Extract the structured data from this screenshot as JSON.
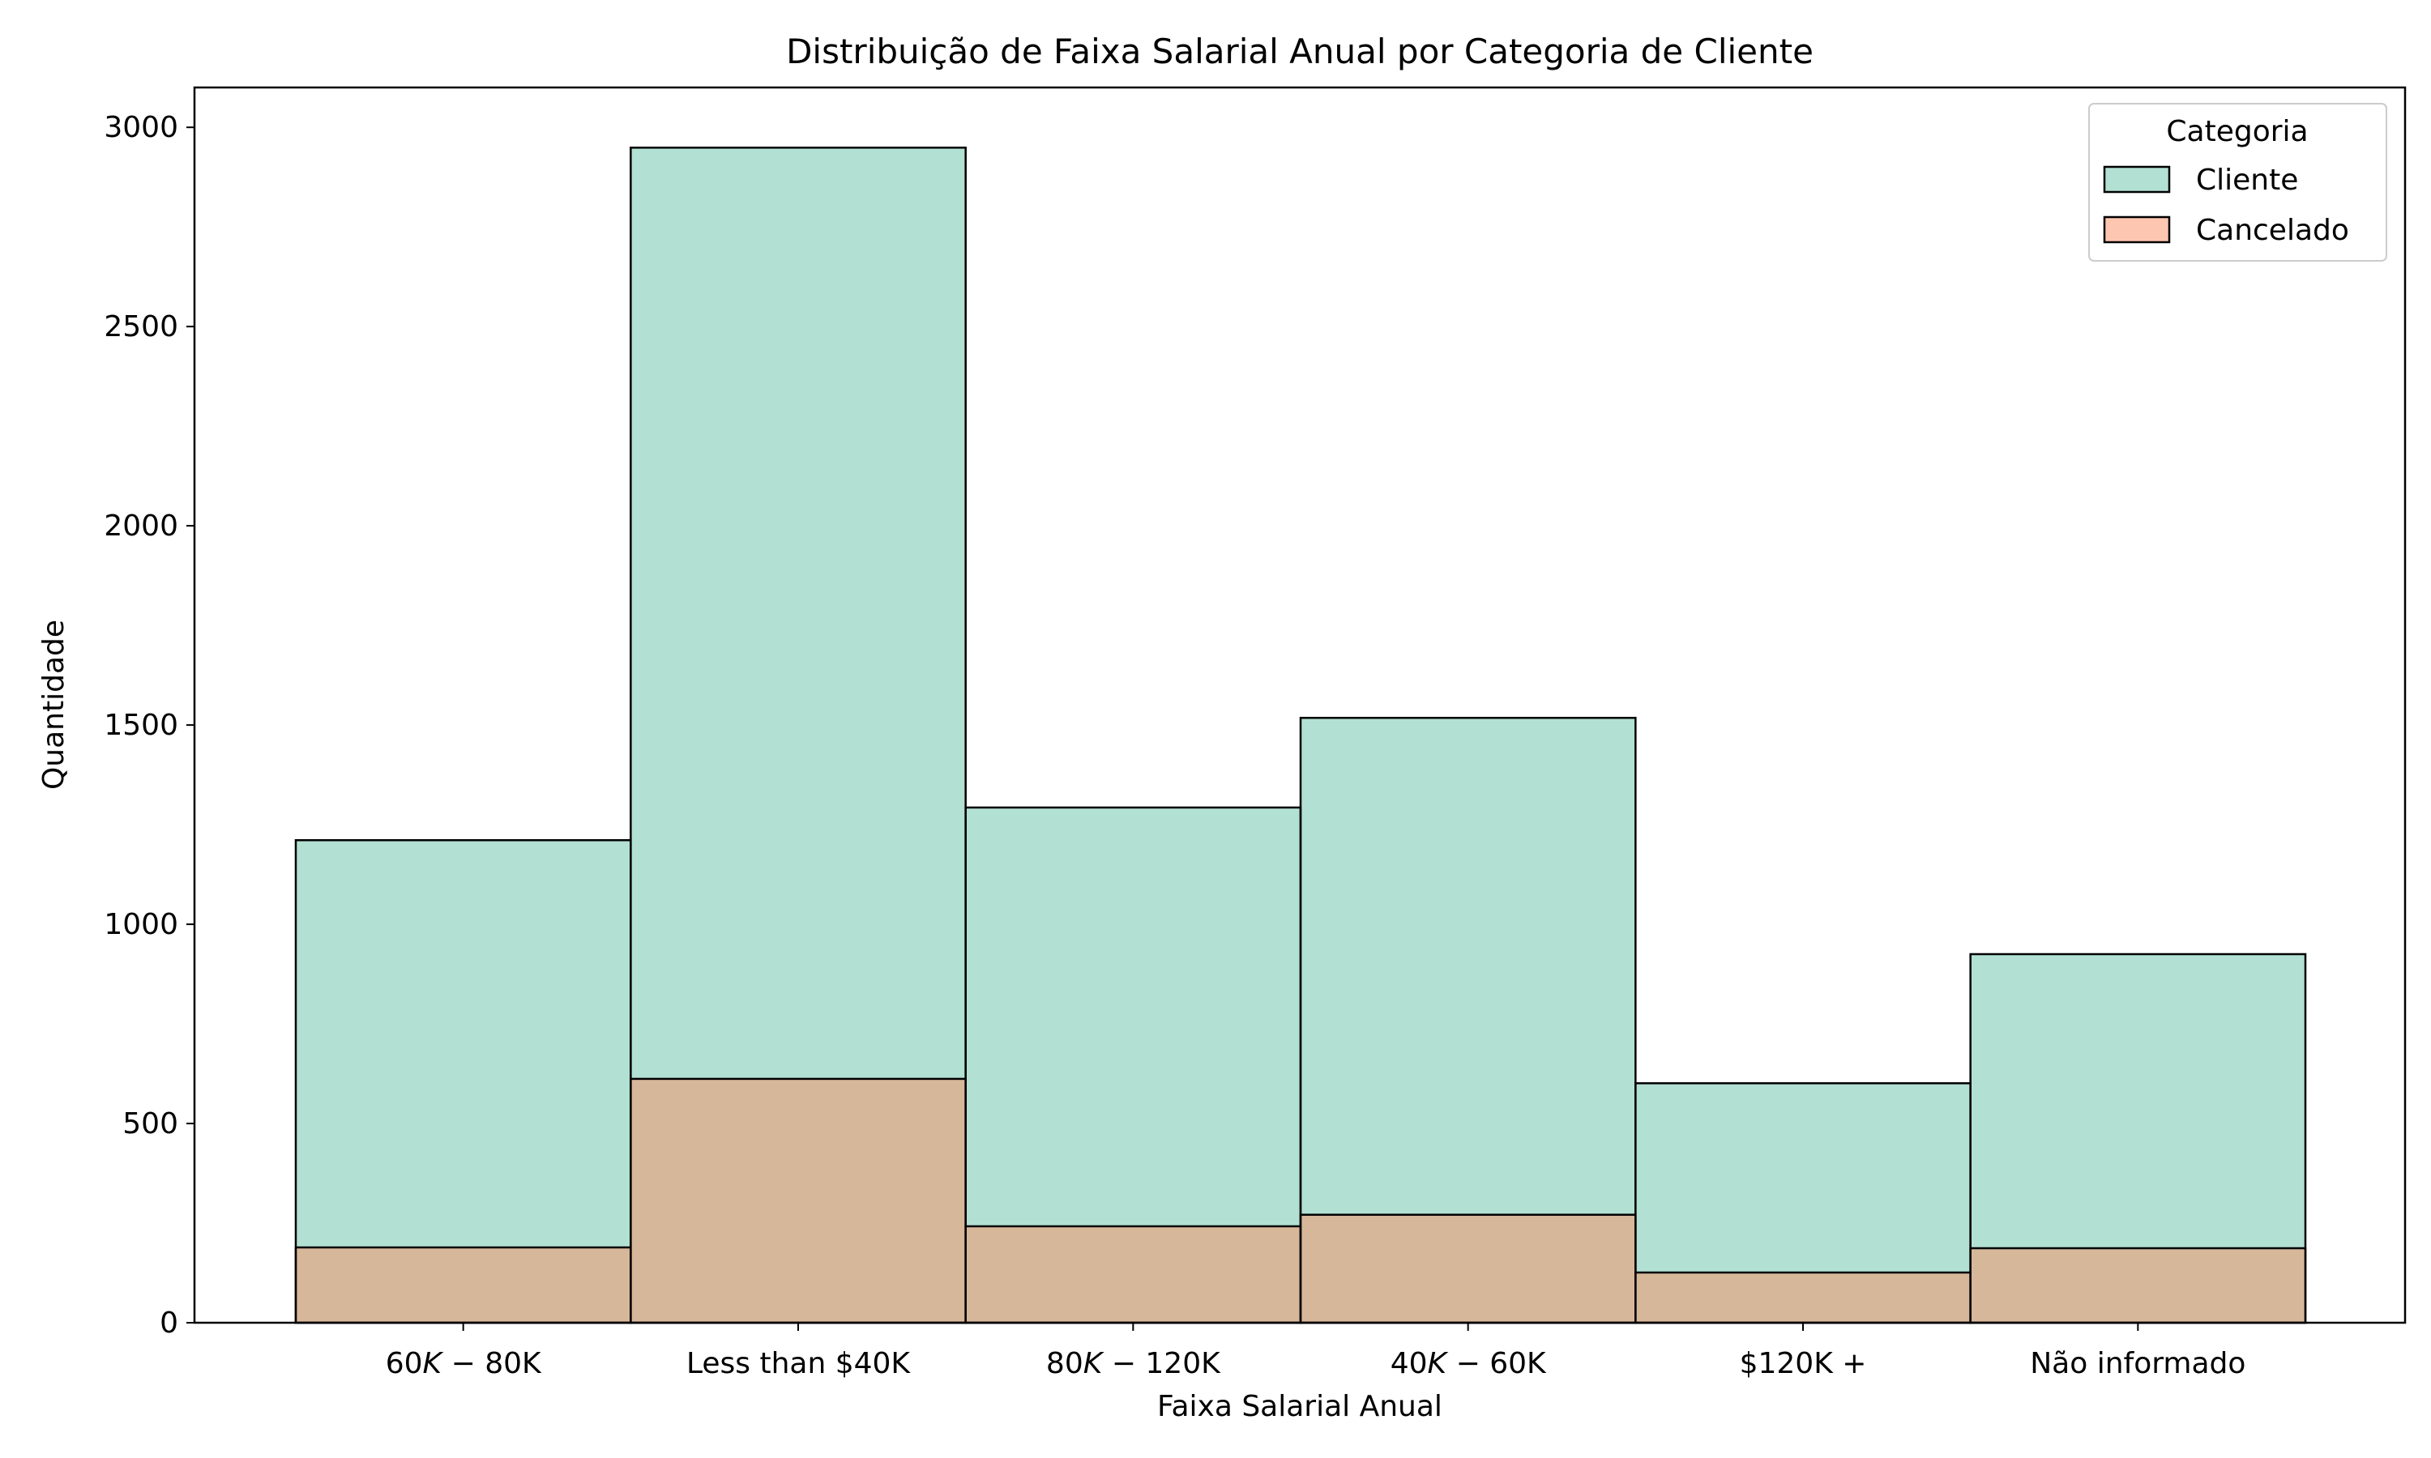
{
  "chart_data": {
    "type": "bar",
    "title": "Distribuição de Faixa Salarial Anual por Categoria de Cliente",
    "xlabel": "Faixa Salarial Anual",
    "ylabel": "Quantidade",
    "categories": [
      "60K−80K",
      "Less than $40K",
      "80K−120K",
      "40K−60K",
      "$120K +",
      "Não informado"
    ],
    "category_labels": {
      "60K−80K": {
        "pre": "60",
        "mid": "K",
        "minus": " − ",
        "num": "80",
        "suf": "K"
      },
      "80K−120K": {
        "pre": "80",
        "mid": "K",
        "minus": " − ",
        "num": "120",
        "suf": "K"
      },
      "40K−60K": {
        "pre": "40",
        "mid": "K",
        "minus": " − ",
        "num": "60",
        "suf": "K"
      }
    },
    "series": [
      {
        "name": "Cliente",
        "values": [
          1211,
          2949,
          1293,
          1518,
          601,
          925
        ],
        "color": "#66c2a5"
      },
      {
        "name": "Cancelado",
        "values": [
          189,
          612,
          242,
          271,
          126,
          187
        ],
        "color": "#fc8d62"
      }
    ],
    "ylim": [
      0,
      3100
    ],
    "yticks": [
      0,
      500,
      1000,
      1500,
      2000,
      2500,
      3000
    ],
    "legend": {
      "title": "Categoria",
      "position": "top-right"
    },
    "grid": false
  }
}
